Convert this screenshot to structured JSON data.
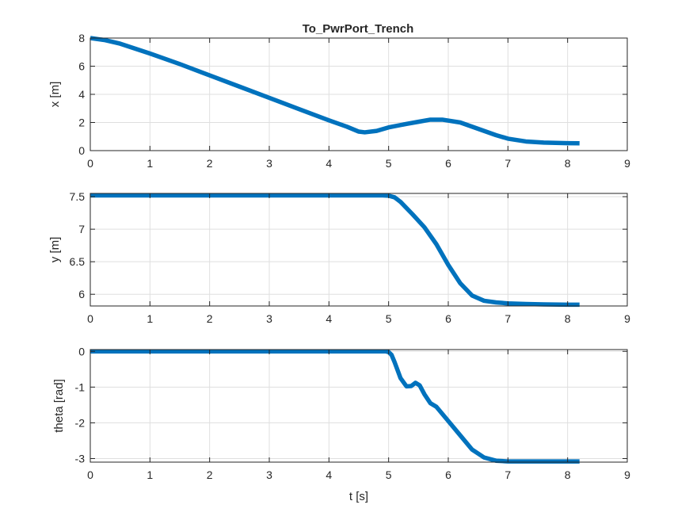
{
  "figure": {
    "title": "To_PwrPort_Trench",
    "line_color": "#0072BD"
  },
  "chart_data": [
    {
      "type": "line",
      "title": "To_PwrPort_Trench",
      "xlabel": "",
      "ylabel": "x [m]",
      "xlim": [
        0,
        9
      ],
      "ylim": [
        0,
        8
      ],
      "xticks": [
        0,
        1,
        2,
        3,
        4,
        5,
        6,
        7,
        8,
        9
      ],
      "yticks": [
        0,
        2,
        4,
        6,
        8
      ],
      "ytick_labels": [
        "0",
        "2",
        "4",
        "6",
        "8"
      ],
      "grid": true,
      "series": [
        {
          "x": [
            0,
            0.25,
            0.5,
            1,
            1.5,
            2,
            2.5,
            3,
            3.5,
            4,
            4.3,
            4.5,
            4.6,
            4.8,
            5,
            5.3,
            5.5,
            5.7,
            5.9,
            6.2,
            6.5,
            6.8,
            7,
            7.3,
            7.6,
            8,
            8.2
          ],
          "y": [
            8.0,
            7.85,
            7.6,
            6.9,
            6.15,
            5.35,
            4.55,
            3.75,
            2.95,
            2.15,
            1.7,
            1.35,
            1.3,
            1.4,
            1.65,
            1.9,
            2.05,
            2.2,
            2.2,
            2.0,
            1.55,
            1.1,
            0.85,
            0.65,
            0.57,
            0.53,
            0.52
          ]
        }
      ]
    },
    {
      "type": "line",
      "xlabel": "",
      "ylabel": "y [m]",
      "xlim": [
        0,
        9
      ],
      "ylim": [
        5.82,
        7.55
      ],
      "xticks": [
        0,
        1,
        2,
        3,
        4,
        5,
        6,
        7,
        8,
        9
      ],
      "yticks": [
        6,
        6.5,
        7,
        7.5
      ],
      "ytick_labels": [
        "6",
        "6.5",
        "7",
        "7.5"
      ],
      "grid": true,
      "series": [
        {
          "x": [
            0,
            1,
            2,
            3,
            4,
            4.9,
            5.0,
            5.1,
            5.2,
            5.4,
            5.6,
            5.8,
            6.0,
            6.2,
            6.4,
            6.6,
            6.8,
            7.0,
            7.3,
            7.6,
            8.0,
            8.2
          ],
          "y": [
            7.52,
            7.52,
            7.52,
            7.52,
            7.52,
            7.52,
            7.515,
            7.49,
            7.42,
            7.23,
            7.03,
            6.77,
            6.45,
            6.17,
            5.98,
            5.9,
            5.875,
            5.86,
            5.85,
            5.845,
            5.84,
            5.84
          ]
        }
      ]
    },
    {
      "type": "line",
      "xlabel": "t [s]",
      "ylabel": "theta [rad]",
      "xlim": [
        0,
        9
      ],
      "ylim": [
        -3.1,
        0.05
      ],
      "xticks": [
        0,
        1,
        2,
        3,
        4,
        5,
        6,
        7,
        8,
        9
      ],
      "yticks": [
        0,
        -1,
        -2,
        -3
      ],
      "ytick_labels": [
        "0",
        "-1",
        "-2",
        "-3"
      ],
      "grid": true,
      "series": [
        {
          "x": [
            0,
            1,
            2,
            3,
            4,
            4.95,
            5.0,
            5.05,
            5.1,
            5.2,
            5.3,
            5.38,
            5.45,
            5.52,
            5.6,
            5.7,
            5.8,
            6.0,
            6.2,
            6.4,
            6.6,
            6.8,
            7.0,
            7.3,
            7.6,
            8.0,
            8.2
          ],
          "y": [
            0,
            0,
            0,
            0,
            0,
            0,
            -0.02,
            -0.1,
            -0.3,
            -0.75,
            -0.98,
            -0.97,
            -0.88,
            -0.95,
            -1.2,
            -1.45,
            -1.55,
            -1.95,
            -2.35,
            -2.75,
            -2.97,
            -3.06,
            -3.08,
            -3.08,
            -3.08,
            -3.08,
            -3.08
          ]
        }
      ]
    }
  ]
}
